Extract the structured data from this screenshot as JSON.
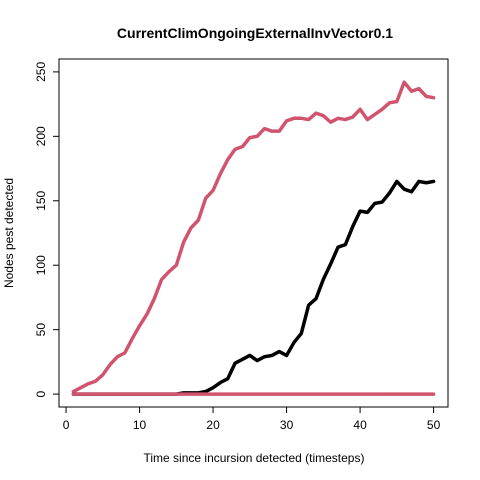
{
  "chart_data": {
    "type": "line",
    "title": "CurrentClimOngoingExternalInvVector0.1",
    "xlabel": "Time since incursion detected (timesteps)",
    "ylabel": "Nodes pest detected",
    "xlim": [
      1,
      50
    ],
    "ylim": [
      0,
      250
    ],
    "x_ticks": [
      0,
      10,
      20,
      30,
      40,
      50
    ],
    "y_ticks": [
      0,
      50,
      100,
      150,
      200,
      250
    ],
    "grid": false,
    "legend": "none",
    "x": [
      1,
      2,
      3,
      4,
      5,
      6,
      7,
      8,
      9,
      10,
      11,
      12,
      13,
      14,
      15,
      16,
      17,
      18,
      19,
      20,
      21,
      22,
      23,
      24,
      25,
      26,
      27,
      28,
      29,
      30,
      31,
      32,
      33,
      34,
      35,
      36,
      37,
      38,
      39,
      40,
      41,
      42,
      43,
      44,
      45,
      46,
      47,
      48,
      49,
      50
    ],
    "series": [
      {
        "color": "#d1546f",
        "values": [
          2,
          5,
          8,
          10,
          15,
          23,
          29,
          32,
          43,
          53,
          62,
          74,
          89,
          95,
          100,
          118,
          129,
          135,
          152,
          158,
          171,
          182,
          190,
          192,
          199,
          200,
          206,
          204,
          204,
          212,
          214,
          214,
          213,
          218,
          216,
          211,
          214,
          213,
          215,
          221,
          213,
          217,
          221,
          226,
          227,
          242,
          235,
          237,
          231,
          230
        ]
      },
      {
        "color": "#000000",
        "values": [
          0,
          0,
          0,
          0,
          0,
          0,
          0,
          0,
          0,
          0,
          0,
          0,
          0,
          0,
          0,
          1,
          1,
          1,
          2,
          5,
          9,
          12,
          24,
          27,
          30,
          26,
          29,
          30,
          33,
          30,
          40,
          47,
          69,
          74,
          89,
          101,
          114,
          116,
          130,
          142,
          141,
          148,
          149,
          156,
          165,
          159,
          157,
          165,
          164,
          165
        ]
      },
      {
        "color": "#d1546f",
        "values": [
          0,
          0,
          0,
          0,
          0,
          0,
          0,
          0,
          0,
          0,
          0,
          0,
          0,
          0,
          0,
          0,
          0,
          0,
          0,
          0,
          0,
          0,
          0,
          0,
          0,
          0,
          0,
          0,
          0,
          0,
          0,
          0,
          0,
          0,
          0,
          0,
          0,
          0,
          0,
          0,
          0,
          0,
          0,
          0,
          0,
          0,
          0,
          0,
          0,
          0
        ]
      }
    ]
  }
}
